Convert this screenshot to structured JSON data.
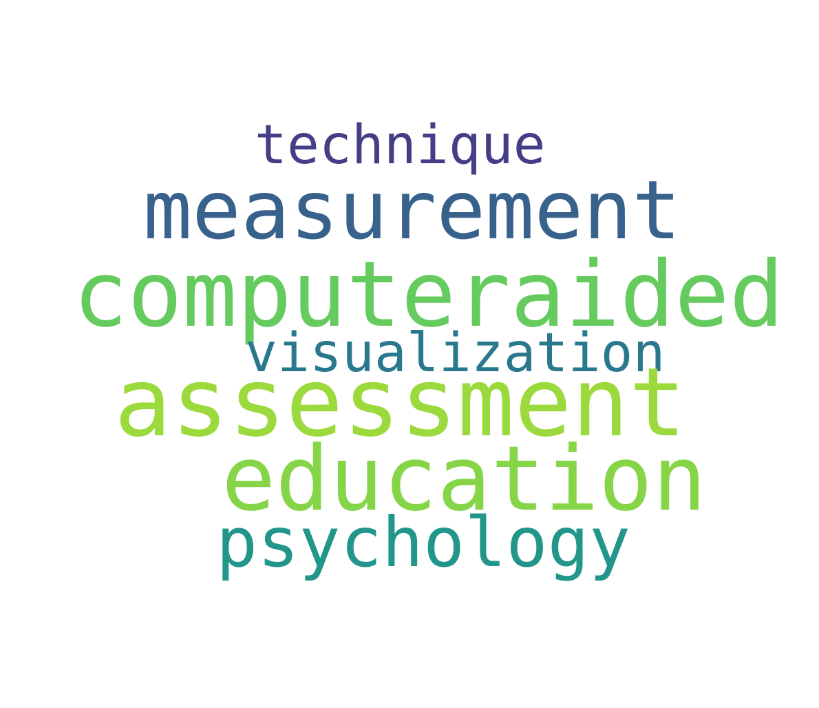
{
  "words": [
    {
      "id": "technique",
      "text": "technique",
      "color": "#433e85"
    },
    {
      "id": "measurement",
      "text": "measurement",
      "color": "#38618c"
    },
    {
      "id": "computeraided",
      "text": "computeraided",
      "color": "#65cb5e"
    },
    {
      "id": "visualization",
      "text": "visualization",
      "color": "#2a788e"
    },
    {
      "id": "assessment",
      "text": "assessment",
      "color": "#9bd93c"
    },
    {
      "id": "education",
      "text": "education",
      "color": "#86d549"
    },
    {
      "id": "psychology",
      "text": "psychology",
      "color": "#23968b"
    }
  ]
}
